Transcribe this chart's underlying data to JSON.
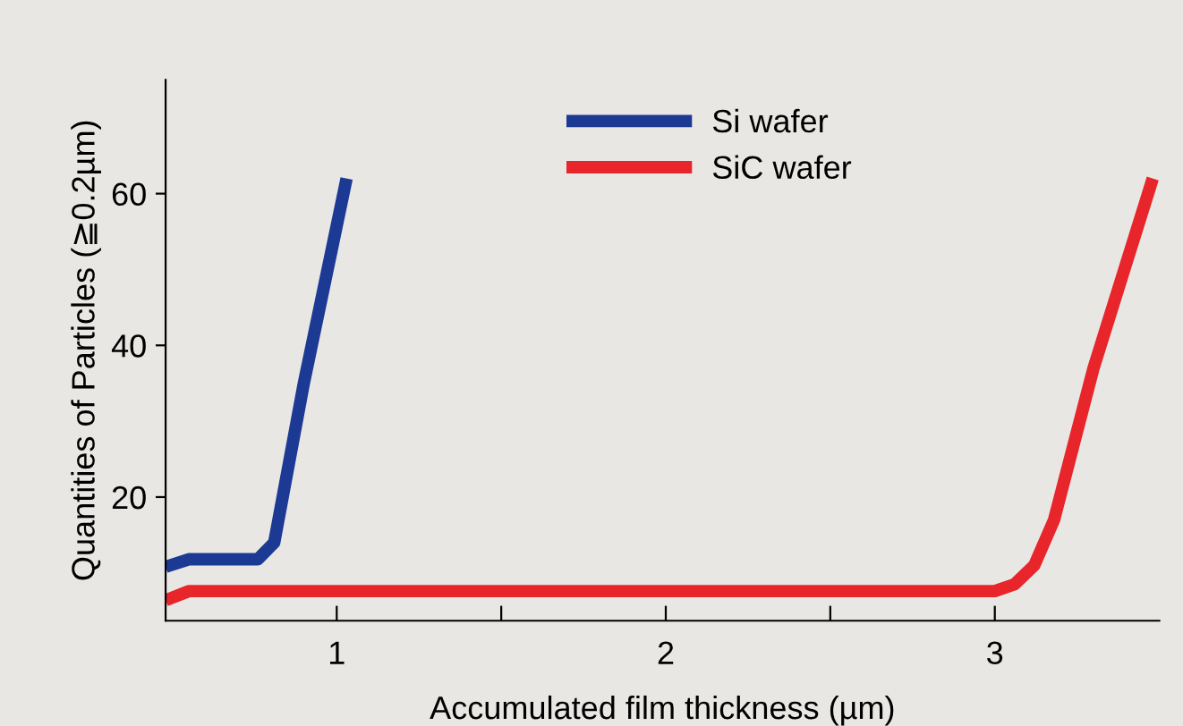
{
  "chart_data": {
    "type": "line",
    "xlabel": "Accumulated film thickness (µm)",
    "ylabel": "Quantities of Particles (≧0.2µm)",
    "xlim": [
      0.48,
      3.5
    ],
    "ylim": [
      3.7,
      75
    ],
    "xticks": [
      1,
      {
        "value": 1.5,
        "label": null
      },
      2,
      {
        "value": 2.5,
        "label": null
      },
      3
    ],
    "yticks": [
      20,
      40,
      60
    ],
    "grid": false,
    "legend": "top",
    "marker": "none",
    "line_style": "solid",
    "series": [
      {
        "name": "Si wafer",
        "color": "#1c3a94",
        "x": [
          0.48,
          0.55,
          0.76,
          0.81,
          0.9,
          1.03
        ],
        "values": [
          10.8,
          11.8,
          11.8,
          14,
          35,
          62
        ]
      },
      {
        "name": "SiC wafer",
        "color": "#e8252a",
        "x": [
          0.48,
          0.55,
          3.0,
          3.06,
          3.12,
          3.18,
          3.3,
          3.48
        ],
        "values": [
          6.4,
          7.6,
          7.6,
          8.5,
          11,
          17,
          37,
          62
        ]
      }
    ]
  }
}
